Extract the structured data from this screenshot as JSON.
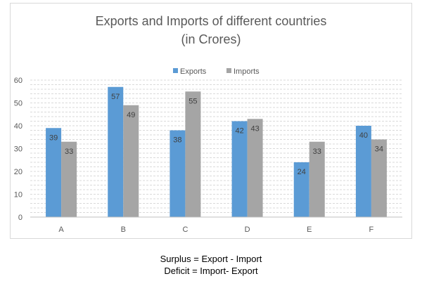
{
  "chart_data": {
    "type": "bar",
    "title": "Exports and Imports of different countries",
    "subtitle": "(in Crores)",
    "categories": [
      "A",
      "B",
      "C",
      "D",
      "E",
      "F"
    ],
    "series": [
      {
        "name": "Exports",
        "values": [
          39,
          57,
          38,
          42,
          24,
          40
        ],
        "color": "#5b9bd5"
      },
      {
        "name": "Imports",
        "values": [
          33,
          49,
          55,
          43,
          33,
          34
        ],
        "color": "#a5a5a5"
      }
    ],
    "ylim": [
      0,
      60
    ],
    "yticks": [
      0,
      10,
      20,
      30,
      40,
      50,
      60
    ],
    "xlabel": "",
    "ylabel": "",
    "grid": "horizontal-dashed",
    "legend_position": "top"
  },
  "notes": {
    "line1": "Surplus = Export - Import",
    "line2": "Deficit = Import- Export"
  }
}
